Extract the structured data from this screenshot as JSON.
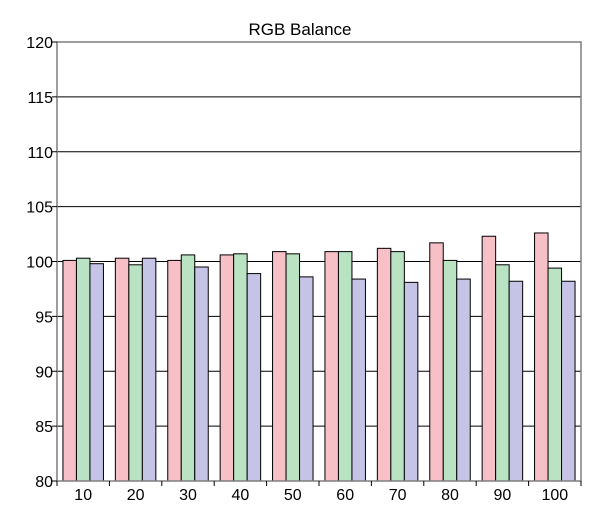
{
  "chart_data": {
    "type": "bar",
    "title": "RGB Balance",
    "xlabel": "",
    "ylabel": "",
    "categories": [
      "10",
      "20",
      "30",
      "40",
      "50",
      "60",
      "70",
      "80",
      "90",
      "100"
    ],
    "ylim": [
      80,
      120
    ],
    "yticks": [
      80,
      85,
      90,
      95,
      100,
      105,
      110,
      115,
      120
    ],
    "grid": true,
    "legend": "none",
    "series": [
      {
        "color": "#f7bfc6",
        "values": [
          100.1,
          100.3,
          100.1,
          100.6,
          100.9,
          100.9,
          101.2,
          101.7,
          102.3,
          102.6
        ]
      },
      {
        "color": "#b9e3c3",
        "values": [
          100.3,
          99.7,
          100.6,
          100.7,
          100.7,
          100.9,
          100.9,
          100.1,
          99.7,
          99.4
        ]
      },
      {
        "color": "#c5c4e6",
        "values": [
          99.8,
          100.3,
          99.5,
          98.9,
          98.6,
          98.4,
          98.1,
          98.4,
          98.2,
          98.2
        ]
      }
    ]
  }
}
